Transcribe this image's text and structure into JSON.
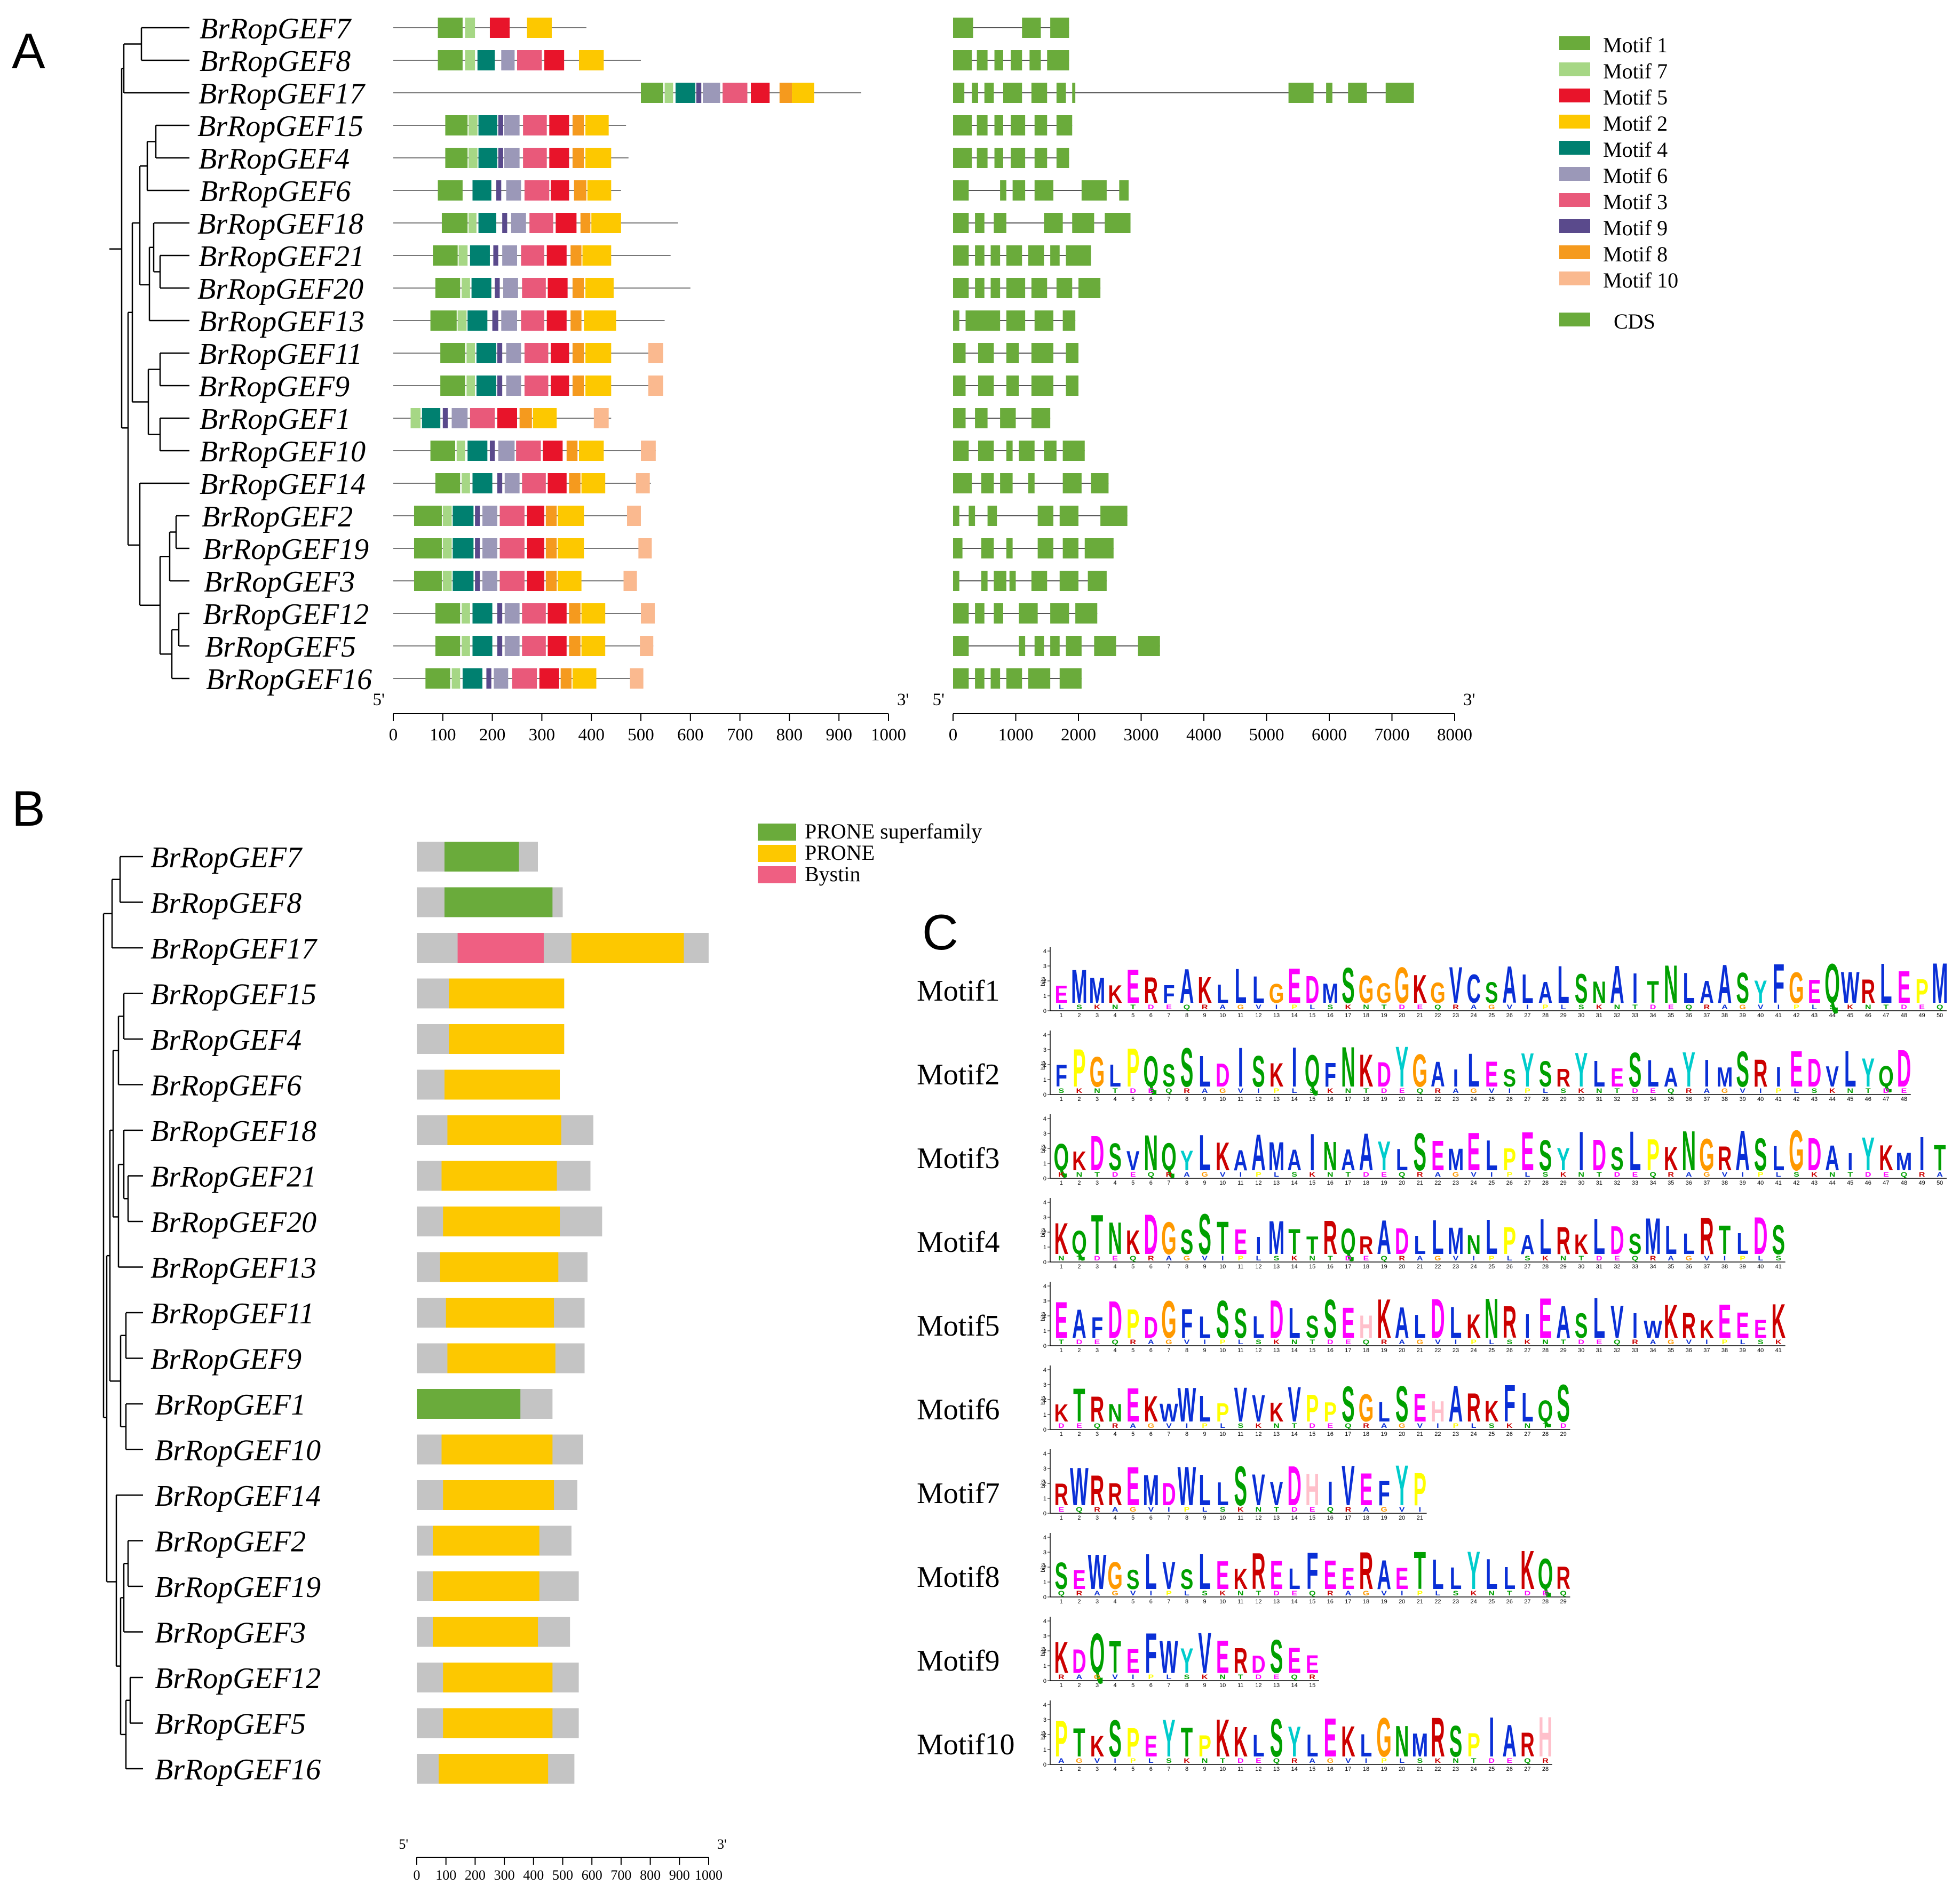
{
  "panels": {
    "a": {
      "label": "A",
      "genes": [
        "BrRopGEF7",
        "BrRopGEF8",
        "BrRopGEF17",
        "BrRopGEF15",
        "BrRopGEF4",
        "BrRopGEF6",
        "BrRopGEF18",
        "BrRopGEF21",
        "BrRopGEF20",
        "BrRopGEF13",
        "BrRopGEF11",
        "BrRopGEF9",
        "BrRopGEF1",
        "BrRopGEF10",
        "BrRopGEF14",
        "BrRopGEF2",
        "BrRopGEF19",
        "BrRopGEF3",
        "BrRopGEF12",
        "BrRopGEF5",
        "BrRopGEF16"
      ],
      "legend": [
        {
          "label": "Motif 1",
          "color": "#6aab3b"
        },
        {
          "label": "Motif 7",
          "color": "#a6d785"
        },
        {
          "label": "Motif 5",
          "color": "#e8142a"
        },
        {
          "label": "Motif 2",
          "color": "#fdc800"
        },
        {
          "label": "Motif 4",
          "color": "#008070"
        },
        {
          "label": "Motif 6",
          "color": "#9b98b8"
        },
        {
          "label": "Motif 3",
          "color": "#e9597a"
        },
        {
          "label": "Motif 9",
          "color": "#5a4a8c"
        },
        {
          "label": "Motif 8",
          "color": "#f59a1e"
        },
        {
          "label": "Motif 10",
          "color": "#fab98f"
        },
        {
          "label": "CDS",
          "color": "#6aab3b"
        }
      ],
      "motif_axis": {
        "start": "5'",
        "end": "3'",
        "ticks": [
          "0",
          "100",
          "200",
          "300",
          "400",
          "500",
          "600",
          "700",
          "800",
          "900",
          "1000"
        ]
      },
      "gene_axis": {
        "start": "5'",
        "end": "3'",
        "ticks": [
          "0",
          "1000",
          "2000",
          "3000",
          "4000",
          "5000",
          "6000",
          "7000",
          "8000"
        ]
      }
    },
    "b": {
      "label": "B",
      "genes": [
        "BrRopGEF7",
        "BrRopGEF8",
        "BrRopGEF17",
        "BrRopGEF15",
        "BrRopGEF4",
        "BrRopGEF6",
        "BrRopGEF18",
        "BrRopGEF21",
        "BrRopGEF20",
        "BrRopGEF13",
        "BrRopGEF11",
        "BrRopGEF9",
        "BrRopGEF1",
        "BrRopGEF10",
        "BrRopGEF14",
        "BrRopGEF2",
        "BrRopGEF19",
        "BrRopGEF3",
        "BrRopGEF12",
        "BrRopGEF5",
        "BrRopGEF16"
      ],
      "legend": [
        {
          "label": "PRONE superfamily",
          "color": "#6aab3b"
        },
        {
          "label": "PRONE",
          "color": "#fdc800"
        },
        {
          "label": "Bystin",
          "color": "#ef5f82"
        }
      ],
      "axis": {
        "start": "5'",
        "end": "3'",
        "ticks": [
          "0",
          "100",
          "200",
          "300",
          "400",
          "500",
          "600",
          "700",
          "800",
          "900",
          "1000"
        ]
      }
    },
    "c": {
      "label": "C",
      "bits_label": "bits",
      "motifs": [
        {
          "name": "Motif1",
          "seq": "EMMKERFAKLLLGEDMSGGGKGVCSALALSNAITNLAASYFGEQWRLEPM"
        },
        {
          "name": "Motif2",
          "seq": "FPGLPQSSLDISKIQFNKDYGAILESYSRYLESLAYIMSRIEDVLYQD"
        },
        {
          "name": "Motif3",
          "seq": "QKDSVNQYLKAAMAINAAYLSEMELPESYIDSLPKNGRASLGDAIYKMIT"
        },
        {
          "name": "Motif4",
          "seq": "KQTNKDGSSTEIMTTRQRADLLMNLPALRKLDSMLLRTLDS"
        },
        {
          "name": "Motif5",
          "seq": "EAFDPDGFLSSLDLSSEHKALDLKNRIEASLVIWKRKEEEK"
        },
        {
          "name": "Motif6",
          "seq": "KTRNEKWWLPVVKVPPSGLSEHARKFLQS"
        },
        {
          "name": "Motif7",
          "seq": "RWRREMDWLLSVVDHIVEFYP"
        },
        {
          "name": "Motif8",
          "seq": "SEWGSLVSLEKRELFEERAETLLYLLKQR"
        },
        {
          "name": "Motif9",
          "seq": "KDQTEFWYVERDSEE"
        },
        {
          "name": "Motif10",
          "seq": "PTKSPEYTPKKLSYLEKLGNMRSPIARH"
        }
      ]
    }
  }
}
